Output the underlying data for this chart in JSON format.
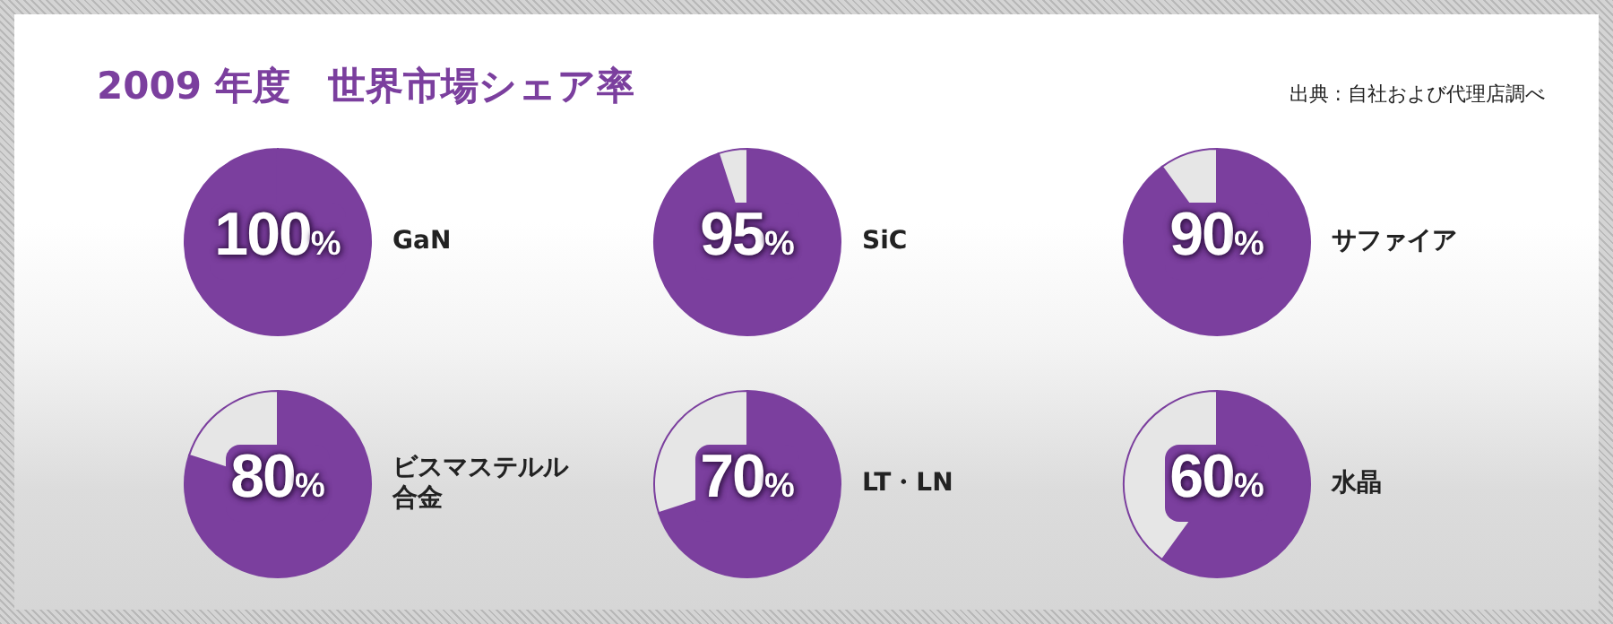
{
  "chart_data": [
    {
      "type": "pie",
      "title": "2009 年度　世界市場シェア率",
      "annotations": [
        "出典 : 自社および代理店調べ"
      ],
      "categories": [
        "GaN",
        null
      ],
      "values": [
        100,
        0
      ],
      "colors": [
        "#7b3f9e",
        "#e6e6e6"
      ],
      "value_labels": [
        "100%",
        null
      ]
    },
    {
      "type": "pie",
      "categories": [
        "SiC",
        null
      ],
      "values": [
        95,
        5
      ],
      "colors": [
        "#7b3f9e",
        "#e6e6e6"
      ],
      "value_labels": [
        "95%",
        null
      ]
    },
    {
      "type": "pie",
      "categories": [
        "サファイア",
        null
      ],
      "values": [
        90,
        10
      ],
      "colors": [
        "#7b3f9e",
        "#e6e6e6"
      ],
      "value_labels": [
        "90%",
        null
      ]
    },
    {
      "type": "pie",
      "categories": [
        "ビスマステルル合金",
        null
      ],
      "values": [
        80,
        20
      ],
      "colors": [
        "#7b3f9e",
        "#e6e6e6"
      ],
      "value_labels": [
        "80%",
        null
      ]
    },
    {
      "type": "pie",
      "categories": [
        "LT・LN",
        null
      ],
      "values": [
        70,
        30
      ],
      "colors": [
        "#7b3f9e",
        "#e6e6e6"
      ],
      "value_labels": [
        "70%",
        null
      ]
    },
    {
      "type": "pie",
      "categories": [
        "水晶",
        null
      ],
      "values": [
        60,
        40
      ],
      "colors": [
        "#7b3f9e",
        "#e6e6e6"
      ],
      "value_labels": [
        "60%",
        null
      ]
    }
  ]
}
